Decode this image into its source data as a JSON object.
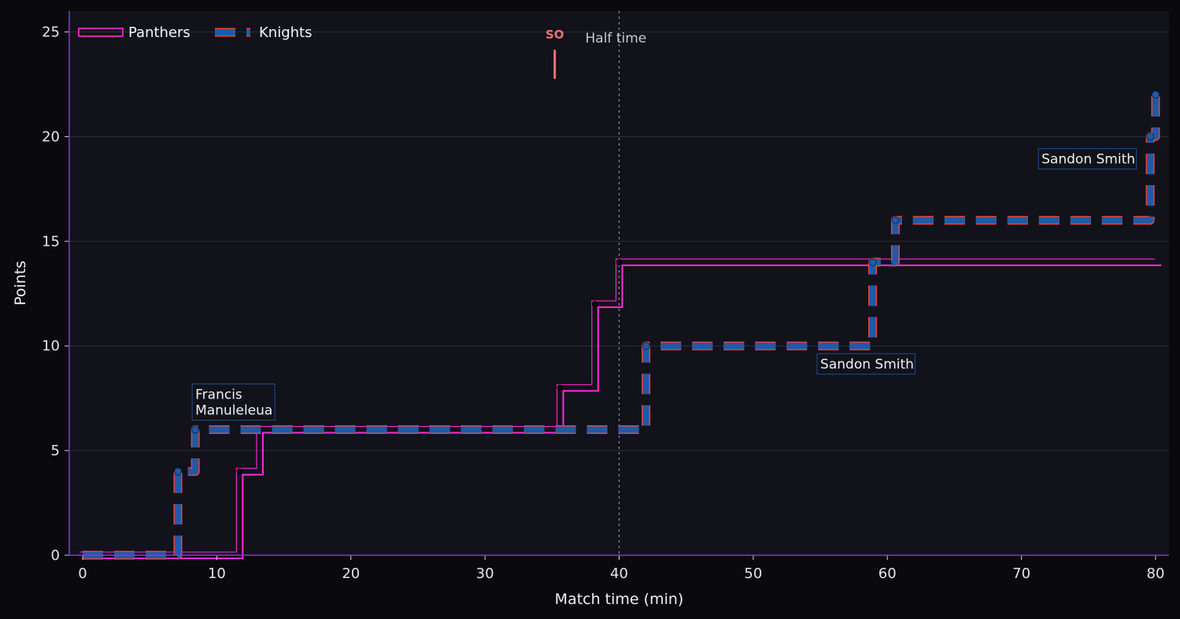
{
  "chart_data": {
    "type": "line",
    "xlabel": "Match time (min)",
    "ylabel": "Points",
    "xlim": [
      -1,
      81
    ],
    "ylim": [
      0,
      26
    ],
    "xticks": [
      0,
      10,
      20,
      30,
      40,
      50,
      60,
      70,
      80
    ],
    "yticks": [
      0,
      5,
      10,
      15,
      20,
      25
    ],
    "grid": "horizontal",
    "legend_position": "top-left",
    "series": [
      {
        "name": "Panthers",
        "color": "#ff2bd6",
        "style": "solid-step",
        "points": [
          [
            0,
            0
          ],
          [
            11.7,
            4
          ],
          [
            13.2,
            6
          ],
          [
            35.6,
            8
          ],
          [
            38.2,
            12
          ],
          [
            40.0,
            14
          ],
          [
            80.2,
            14
          ]
        ]
      },
      {
        "name": "Knights",
        "color": "#1f5aa8",
        "edge_color": "#e8453c",
        "style": "dashed-step",
        "points": [
          [
            0,
            0
          ],
          [
            7.1,
            4
          ],
          [
            8.4,
            6
          ],
          [
            42.0,
            10
          ],
          [
            58.9,
            14
          ],
          [
            60.6,
            16
          ],
          [
            79.6,
            20
          ],
          [
            80.0,
            22
          ]
        ]
      }
    ],
    "annotations": [
      {
        "lines": [
          "Francis",
          "Manuleleua"
        ],
        "x": 8.4,
        "y": 6.6
      },
      {
        "lines": [
          "Sandon Smith"
        ],
        "x": 55.0,
        "y": 8.8
      },
      {
        "lines": [
          "Sandon Smith"
        ],
        "x": 71.5,
        "y": 18.6
      }
    ],
    "vline": {
      "x": 40,
      "label": "Half time"
    },
    "marker": {
      "x": 35.2,
      "label": "SO",
      "color": "#f07070"
    }
  }
}
